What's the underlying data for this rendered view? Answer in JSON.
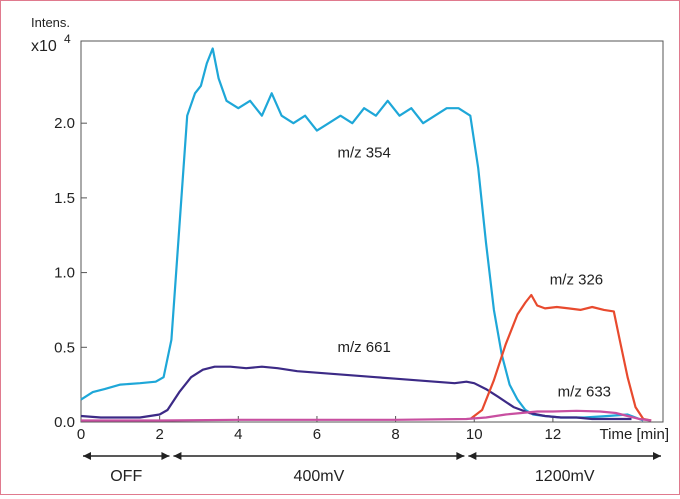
{
  "chart_data": {
    "type": "line",
    "ylabel": "Intens.",
    "ylabel_scale": "x10",
    "ylabel_exp": "4",
    "xlabel": "Time [min]",
    "xlim": [
      0,
      14.8
    ],
    "ylim": [
      0,
      2.55
    ],
    "x_ticks": [
      "0",
      "2",
      "4",
      "6",
      "8",
      "10",
      "12"
    ],
    "y_ticks": [
      "0.0",
      "0.5",
      "1.0",
      "1.5",
      "2.0"
    ],
    "grid": false,
    "series": [
      {
        "name": "m/z 354",
        "color": "#1ea7d8",
        "x": [
          0,
          0.3,
          0.6,
          1.0,
          1.5,
          1.9,
          2.1,
          2.3,
          2.5,
          2.7,
          2.9,
          3.05,
          3.2,
          3.35,
          3.5,
          3.7,
          4.0,
          4.3,
          4.6,
          4.85,
          5.1,
          5.4,
          5.7,
          6.0,
          6.3,
          6.6,
          6.9,
          7.2,
          7.5,
          7.8,
          8.1,
          8.4,
          8.7,
          9.0,
          9.3,
          9.6,
          9.9,
          10.1,
          10.3,
          10.5,
          10.7,
          10.9,
          11.1,
          11.3,
          11.5,
          11.8,
          12.2,
          12.8,
          13.4,
          13.9,
          14.1,
          14.3
        ],
        "values": [
          0.15,
          0.2,
          0.22,
          0.25,
          0.26,
          0.27,
          0.3,
          0.55,
          1.3,
          2.05,
          2.2,
          2.25,
          2.4,
          2.5,
          2.3,
          2.15,
          2.1,
          2.15,
          2.05,
          2.2,
          2.05,
          2.0,
          2.05,
          1.95,
          2.0,
          2.05,
          2.0,
          2.1,
          2.05,
          2.15,
          2.05,
          2.1,
          2.0,
          2.05,
          2.1,
          2.1,
          2.05,
          1.7,
          1.2,
          0.75,
          0.45,
          0.25,
          0.15,
          0.08,
          0.05,
          0.04,
          0.03,
          0.03,
          0.04,
          0.05,
          0.03,
          0.01
        ]
      },
      {
        "name": "m/z 661",
        "color": "#3c2a86",
        "x": [
          0,
          0.5,
          1.0,
          1.5,
          2.0,
          2.2,
          2.5,
          2.8,
          3.1,
          3.4,
          3.8,
          4.2,
          4.6,
          5.0,
          5.5,
          6.0,
          6.5,
          7.0,
          7.5,
          8.0,
          8.5,
          9.0,
          9.5,
          9.8,
          10.0,
          10.3,
          10.6,
          11.0,
          11.4,
          11.8,
          12.2,
          12.6,
          13.0,
          13.5,
          14.0
        ],
        "values": [
          0.04,
          0.03,
          0.03,
          0.03,
          0.05,
          0.08,
          0.2,
          0.3,
          0.35,
          0.37,
          0.37,
          0.36,
          0.37,
          0.36,
          0.34,
          0.33,
          0.32,
          0.31,
          0.3,
          0.29,
          0.28,
          0.27,
          0.26,
          0.27,
          0.26,
          0.22,
          0.17,
          0.1,
          0.06,
          0.04,
          0.03,
          0.03,
          0.02,
          0.02,
          0.02
        ]
      },
      {
        "name": "m/z 326",
        "color": "#e84a2e",
        "x": [
          9.9,
          10.2,
          10.5,
          10.8,
          11.1,
          11.3,
          11.45,
          11.6,
          11.8,
          12.1,
          12.4,
          12.7,
          13.0,
          13.3,
          13.55,
          13.7,
          13.9,
          14.1,
          14.3,
          14.5
        ],
        "values": [
          0.02,
          0.08,
          0.28,
          0.52,
          0.72,
          0.8,
          0.85,
          0.78,
          0.76,
          0.77,
          0.76,
          0.75,
          0.77,
          0.75,
          0.74,
          0.55,
          0.3,
          0.1,
          0.02,
          0.01
        ]
      },
      {
        "name": "m/z 633",
        "color": "#c84fa0",
        "x": [
          0,
          2.0,
          4.0,
          6.0,
          8.0,
          9.8,
          10.3,
          10.8,
          11.2,
          11.6,
          12.0,
          12.6,
          13.2,
          13.6,
          13.9,
          14.2,
          14.5
        ],
        "values": [
          0.01,
          0.01,
          0.015,
          0.015,
          0.015,
          0.02,
          0.03,
          0.05,
          0.06,
          0.07,
          0.07,
          0.075,
          0.07,
          0.06,
          0.04,
          0.02,
          0.01
        ]
      }
    ],
    "annotations": [
      {
        "text": "m/z 354",
        "x": 7.2,
        "y": 1.77
      },
      {
        "text": "m/z 661",
        "x": 7.2,
        "y": 0.47
      },
      {
        "text": "m/z 326",
        "x": 12.6,
        "y": 0.92
      },
      {
        "text": "m/z 633",
        "x": 12.8,
        "y": 0.17
      }
    ],
    "phases": [
      {
        "label": "OFF",
        "start": 0,
        "end": 2.3
      },
      {
        "label": "400mV",
        "start": 2.3,
        "end": 9.8
      },
      {
        "label": "1200mV",
        "start": 9.8,
        "end": 14.8
      }
    ]
  }
}
